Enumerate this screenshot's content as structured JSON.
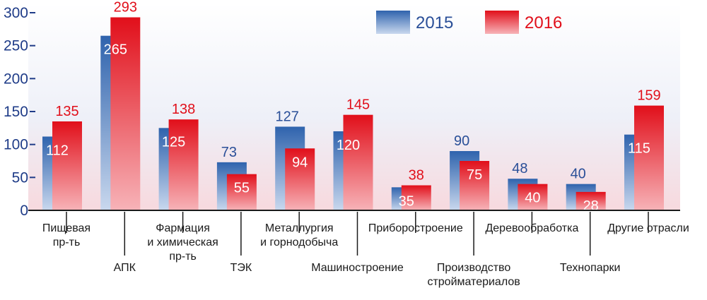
{
  "chart_data": {
    "type": "bar",
    "categories": [
      "Пищевая пр-ть",
      "АПК",
      "Фармация и химическая пр-ть",
      "ТЭК",
      "Металлургия и горнодобыча",
      "Машиностроение",
      "Приборостроение",
      "Производство стройматериалов",
      "Деревообработка",
      "Технопарки",
      "Другие отрасли"
    ],
    "category_label_lines": [
      [
        "Пищевая",
        "пр-ть"
      ],
      [
        "АПК"
      ],
      [
        "Фармация",
        "и химическая",
        "пр-ть"
      ],
      [
        "ТЭК"
      ],
      [
        "Металлургия",
        "и горнодобыча"
      ],
      [
        "Машиностроение"
      ],
      [
        "Приборостроение"
      ],
      [
        "Производство",
        "стройматериалов"
      ],
      [
        "Деревообработка"
      ],
      [
        "Технопарки"
      ],
      [
        "Другие отрасли"
      ]
    ],
    "label_alternates": [
      0,
      1,
      0,
      1,
      0,
      1,
      0,
      1,
      0,
      1,
      0
    ],
    "series": [
      {
        "name": "2015",
        "values": [
          112,
          265,
          125,
          73,
          127,
          120,
          35,
          90,
          48,
          40,
          115
        ]
      },
      {
        "name": "2016",
        "values": [
          135,
          293,
          138,
          55,
          94,
          145,
          38,
          75,
          40,
          28,
          159
        ]
      }
    ],
    "series_colors": {
      "2015": "#3d6db3",
      "2016": "#e3121c"
    },
    "y_ticks": [
      0,
      50,
      100,
      150,
      200,
      250,
      300
    ],
    "ylim": [
      0,
      300
    ],
    "grid": false,
    "legend": "top-center",
    "title": "",
    "xlabel": "",
    "ylabel": ""
  }
}
